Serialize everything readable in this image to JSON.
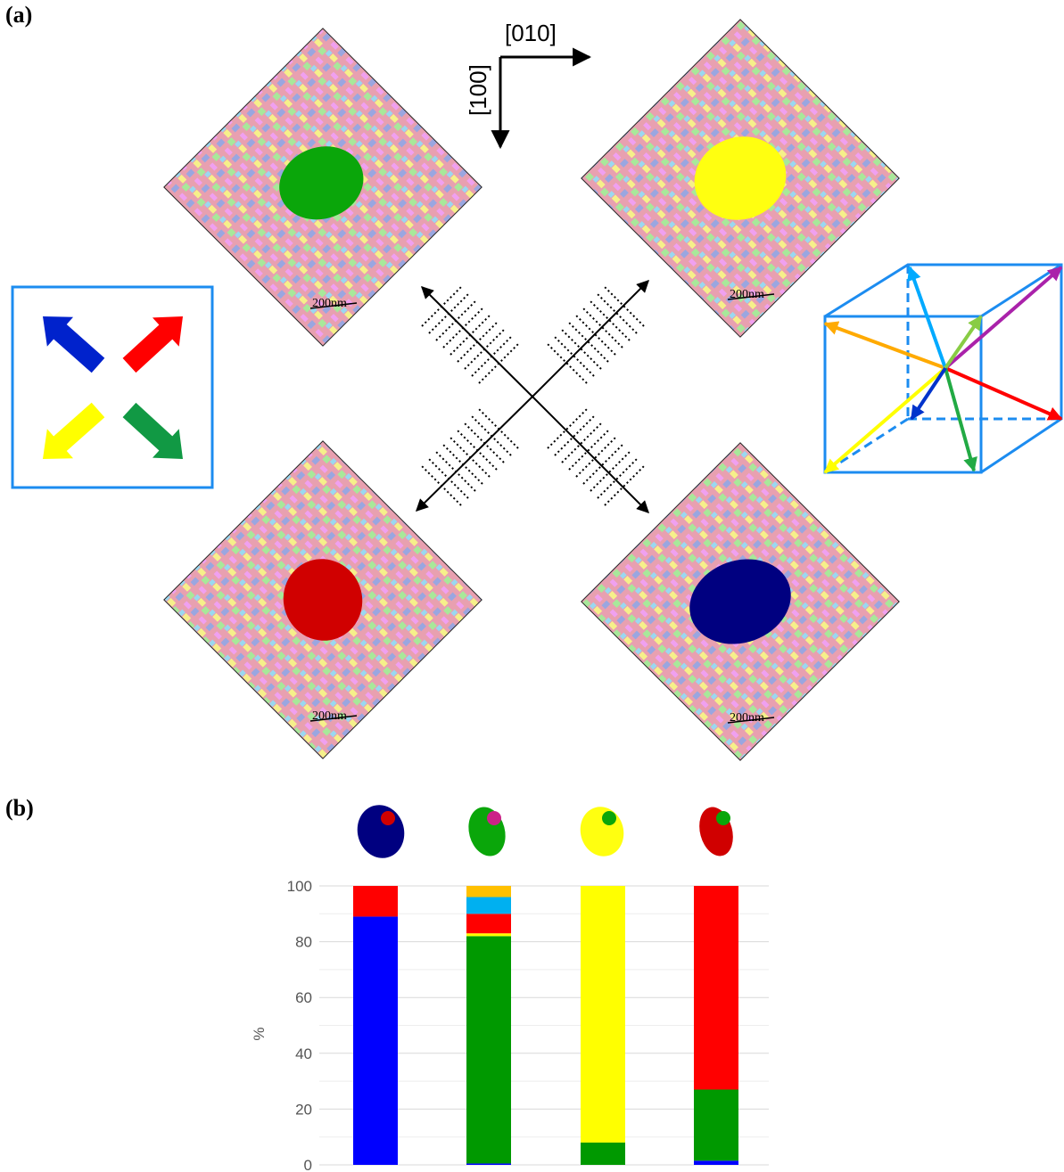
{
  "panel_a": {
    "label": "(a)",
    "axes": {
      "x_label": "[010]",
      "y_label": "[100]"
    },
    "scale_bar": "200nm",
    "maps": [
      {
        "position": "top-left",
        "grain_color": "#0aa60a"
      },
      {
        "position": "top-right",
        "grain_color": "#ffff10"
      },
      {
        "position": "bottom-left",
        "grain_color": "#d00000"
      },
      {
        "position": "bottom-right",
        "grain_color": "#000080"
      }
    ],
    "legend_arrows": [
      "#0022cc",
      "#ff0000",
      "#ffff00",
      "#119944"
    ],
    "cube_arrow_colors": [
      "#ff0000",
      "#ffaa00",
      "#00aaff",
      "#aa22aa",
      "#88cc44",
      "#ffff00",
      "#22aa44",
      "#0033cc"
    ]
  },
  "panel_b": {
    "label": "(b)",
    "chart_data": {
      "type": "bar",
      "stacked": true,
      "ylabel": "%",
      "ylim": [
        0,
        100
      ],
      "yticks": [
        0,
        20,
        40,
        60,
        80,
        100
      ],
      "grid": true,
      "bars": [
        {
          "segments": [
            {
              "color": "#0000ff",
              "value": 89
            },
            {
              "color": "#ff0000",
              "value": 11
            }
          ]
        },
        {
          "segments": [
            {
              "color": "#0000ff",
              "value": 0.5
            },
            {
              "color": "#009900",
              "value": 81.5
            },
            {
              "color": "#ffff00",
              "value": 1
            },
            {
              "color": "#ff0000",
              "value": 7
            },
            {
              "color": "#00b0f0",
              "value": 6
            },
            {
              "color": "#ffc000",
              "value": 4
            }
          ]
        },
        {
          "segments": [
            {
              "color": "#009900",
              "value": 8
            },
            {
              "color": "#ffff00",
              "value": 92
            }
          ]
        },
        {
          "segments": [
            {
              "color": "#0000ff",
              "value": 1.5
            },
            {
              "color": "#009900",
              "value": 25.5
            },
            {
              "color": "#ff0000",
              "value": 73
            }
          ]
        }
      ]
    },
    "thumbnails": [
      {
        "main": "#000080",
        "accent": "#d00000"
      },
      {
        "main": "#0aa60a",
        "accent": "#cc2288"
      },
      {
        "main": "#ffff10",
        "accent": "#0aa60a"
      },
      {
        "main": "#d00000",
        "accent": "#0aa60a"
      }
    ]
  }
}
